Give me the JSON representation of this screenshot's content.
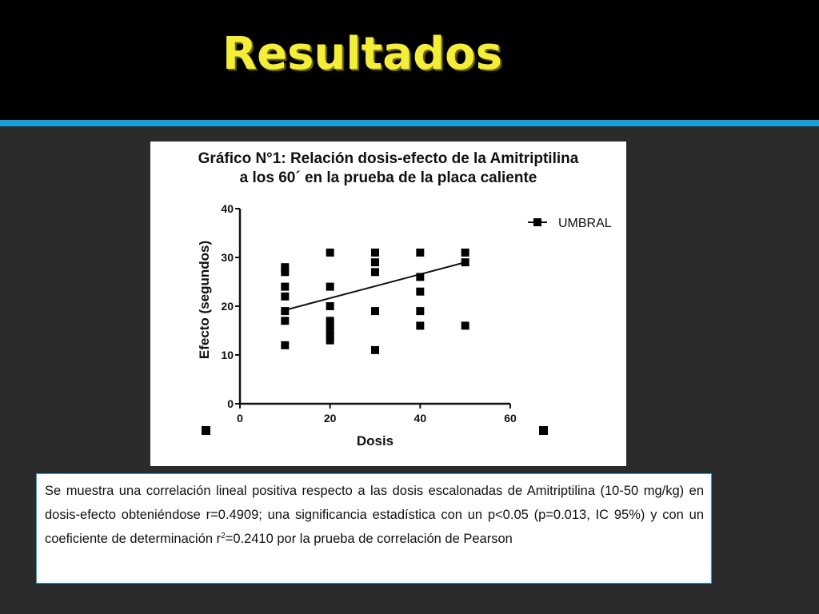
{
  "slide": {
    "title": "Resultados",
    "colors": {
      "title": "#f4ee3a",
      "accent_bar": "#1a9fd9",
      "background": "#2b2b2b",
      "top_band": "#000000"
    }
  },
  "chart_data": {
    "type": "scatter",
    "title_line1": "Gráfico N°1: Relación dosis-efecto de la Amitriptilina",
    "title_line2": "a los 60´ en la prueba de la placa caliente",
    "xlabel": "Dosis",
    "ylabel": "Efecto (segundos)",
    "xlim": [
      0,
      60
    ],
    "ylim": [
      0,
      40
    ],
    "xticks": [
      0,
      20,
      40,
      60
    ],
    "yticks": [
      0,
      10,
      20,
      30,
      40
    ],
    "grid": false,
    "legend_position": "top-right",
    "series": [
      {
        "name": "UMBRAL",
        "marker": "square",
        "points": [
          [
            10,
            28
          ],
          [
            10,
            27
          ],
          [
            10,
            24
          ],
          [
            10,
            22
          ],
          [
            10,
            19
          ],
          [
            10,
            17
          ],
          [
            10,
            12
          ],
          [
            20,
            31
          ],
          [
            20,
            24
          ],
          [
            20,
            20
          ],
          [
            20,
            17
          ],
          [
            20,
            16
          ],
          [
            20,
            15
          ],
          [
            20,
            14
          ],
          [
            20,
            13
          ],
          [
            30,
            31
          ],
          [
            30,
            29
          ],
          [
            30,
            27
          ],
          [
            30,
            19
          ],
          [
            30,
            11
          ],
          [
            40,
            31
          ],
          [
            40,
            26
          ],
          [
            40,
            23
          ],
          [
            40,
            19
          ],
          [
            40,
            16
          ],
          [
            50,
            31
          ],
          [
            50,
            29
          ],
          [
            50,
            16
          ]
        ]
      }
    ],
    "regression_line": {
      "x": [
        10,
        50
      ],
      "y": [
        19.2,
        29.0
      ]
    }
  },
  "caption": {
    "part1": "Se muestra una correlación lineal positiva respecto a las dosis escalonadas de Amitriptilina (10-50 mg/kg) en dosis-efecto obteniéndose r=0.4909; una significancia estadística con un p<0.05 (p=0.013, IC 95%) y con un coeficiente de determinación r",
    "superscript": "2",
    "part2": "=0.2410  por la prueba de correlación de Pearson"
  }
}
